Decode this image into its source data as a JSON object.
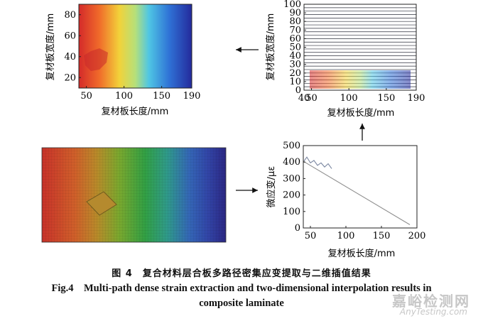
{
  "panels": {
    "top_left": {
      "ylabel": "复材板宽度/mm",
      "xlabel": "复材板长度/mm",
      "xticks": [
        "50",
        "100",
        "150",
        "190"
      ],
      "yticks": [
        "20",
        "40",
        "60",
        "80"
      ]
    },
    "top_right": {
      "ylabel": "复材板宽度/mm",
      "xlabel": "复材板长度/mm",
      "xticks": [
        "40",
        "50",
        "100",
        "150",
        "190"
      ],
      "yticks": [
        "0",
        "10",
        "20",
        "30",
        "40",
        "50",
        "60",
        "70",
        "80",
        "90",
        "100"
      ]
    },
    "bottom_right": {
      "ylabel": "微应变/με",
      "xlabel": "复材板长度/mm",
      "xticks": [
        "50",
        "100",
        "150",
        "200"
      ],
      "yticks": [
        "0",
        "100",
        "200",
        "300",
        "400",
        "500"
      ]
    }
  },
  "chart_data": [
    {
      "type": "heatmap",
      "xlabel": "复材板长度/mm",
      "ylabel": "复材板宽度/mm",
      "xlim": [
        40,
        190
      ],
      "ylim": [
        10,
        90
      ]
    },
    {
      "type": "line",
      "xlabel": "复材板长度/mm",
      "ylabel": "复材板宽度/mm",
      "xlim": [
        40,
        190
      ],
      "ylim": [
        0,
        100
      ]
    },
    {
      "type": "line",
      "xlabel": "复材板长度/mm",
      "ylabel": "微应变/με",
      "xlim": [
        40,
        200
      ],
      "ylim": [
        0,
        500
      ],
      "series": [
        {
          "x": [
            40,
            45,
            50,
            55,
            60,
            65,
            70,
            75,
            80
          ],
          "y": [
            400,
            430,
            395,
            410,
            380,
            395,
            370,
            390,
            360
          ]
        },
        {
          "x": [
            40,
            190
          ],
          "y": [
            405,
            20
          ]
        }
      ]
    }
  ],
  "caption": {
    "cn": "图 4　复合材料层合板多路径密集应变提取与二维插值结果",
    "en_line1": "Fig.4　Multi-path dense strain extraction and two-dimensional interpolation results in",
    "en_line2": "composite laminate"
  },
  "watermark": {
    "cn": "嘉峪检测网",
    "en": "AnyTesting.com"
  }
}
